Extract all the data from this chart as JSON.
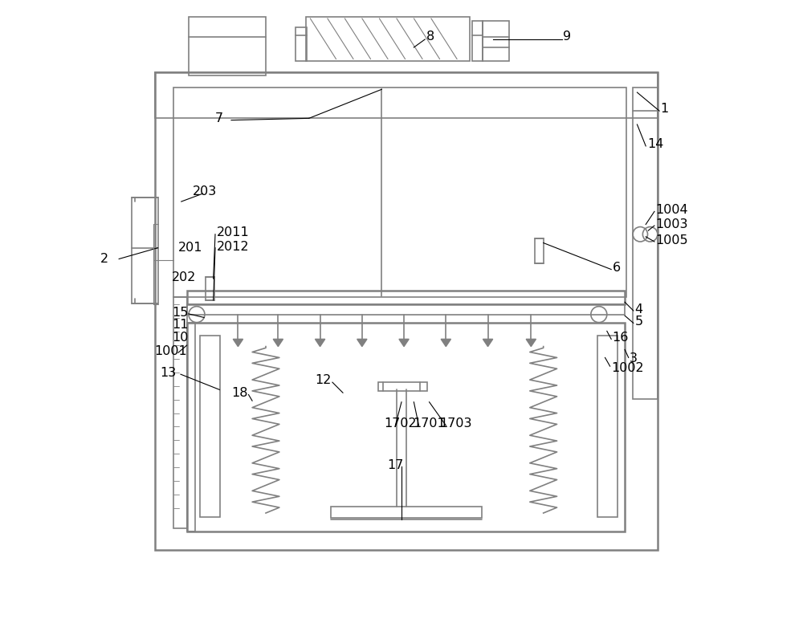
{
  "bg_color": "#ffffff",
  "line_color": "#808080",
  "text_color": "#000000",
  "line_width": 1.2,
  "fig_width": 10.0,
  "fig_height": 7.71
}
